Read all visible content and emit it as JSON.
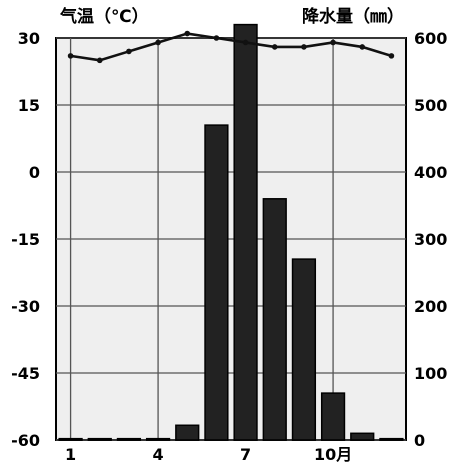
{
  "chart_data": {
    "type": "bar",
    "title": "",
    "ylabel_left": "气温（℃）",
    "ylabel_right": "降水量（㎜）",
    "x_tick_labels": [
      "1",
      "4",
      "7",
      "10月"
    ],
    "categories": [
      "1",
      "2",
      "3",
      "4",
      "5",
      "6",
      "7",
      "8",
      "9",
      "10",
      "11",
      "12"
    ],
    "left_axis": {
      "ticks": [
        "30",
        "15",
        "0",
        "-15",
        "-30",
        "-45",
        "-60"
      ],
      "ylim": [
        -60,
        30
      ]
    },
    "right_axis": {
      "ticks": [
        "600",
        "500",
        "400",
        "300",
        "200",
        "100",
        "0"
      ],
      "ylim": [
        0,
        600
      ]
    },
    "grid": true,
    "series": [
      {
        "kind": "bar",
        "axis": "right",
        "values": [
          2,
          2,
          2,
          2,
          22,
          470,
          620,
          360,
          270,
          70,
          10,
          2
        ]
      },
      {
        "kind": "line",
        "axis": "left",
        "values": [
          26,
          25,
          27,
          29,
          31,
          30,
          29,
          28,
          28,
          29,
          28,
          26
        ]
      }
    ],
    "colors": {
      "bar": "#222222",
      "line": "#111111",
      "plot_bg": "#efefef"
    }
  }
}
